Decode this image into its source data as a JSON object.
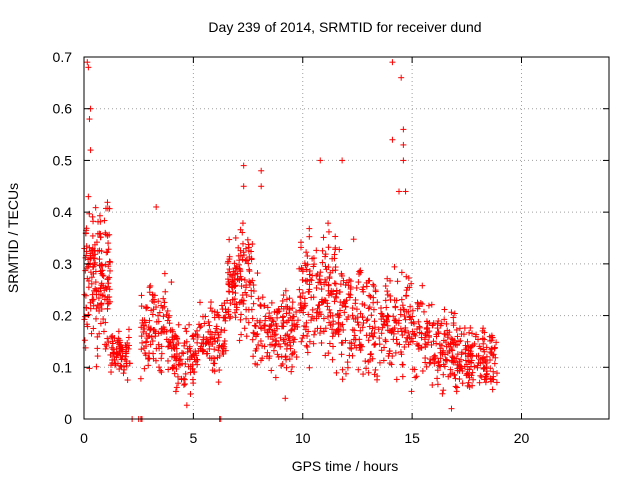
{
  "chart_data": {
    "type": "scatter",
    "title": "Day 239 of 2014, SRMTID for receiver dund",
    "xlabel": "GPS time / hours",
    "ylabel": "SRMTID / TECUs",
    "xlim": [
      0,
      24
    ],
    "ylim": [
      0,
      0.7
    ],
    "xticks": [
      0,
      5,
      10,
      15,
      20
    ],
    "xtick_labels": [
      "0",
      "5",
      "10",
      "15",
      "20"
    ],
    "yticks": [
      0,
      0.1,
      0.2,
      0.3,
      0.4,
      0.5,
      0.6,
      0.7
    ],
    "ytick_labels": [
      "0",
      "0.1",
      "0.2",
      "0.3",
      "0.4",
      "0.5",
      "0.6",
      "0.7"
    ],
    "grid": true,
    "marker": "+",
    "color": "#ff0000",
    "series": [
      {
        "name": "SRMTID",
        "clusters": [
          {
            "x_from": 0.0,
            "x_to": 1.2,
            "y_center": 0.27,
            "y_spread": 0.1,
            "count": 170
          },
          {
            "x_from": 1.2,
            "x_to": 2.1,
            "y_center": 0.13,
            "y_spread": 0.03,
            "count": 70
          },
          {
            "x_from": 2.6,
            "x_to": 4.0,
            "y_center": 0.17,
            "y_spread": 0.06,
            "count": 110
          },
          {
            "x_from": 4.0,
            "x_to": 5.3,
            "y_center": 0.12,
            "y_spread": 0.045,
            "count": 100
          },
          {
            "x_from": 5.3,
            "x_to": 6.5,
            "y_center": 0.16,
            "y_spread": 0.05,
            "count": 90
          },
          {
            "x_from": 6.5,
            "x_to": 7.7,
            "y_center": 0.26,
            "y_spread": 0.07,
            "count": 120
          },
          {
            "x_from": 7.7,
            "x_to": 9.8,
            "y_center": 0.17,
            "y_spread": 0.055,
            "count": 160
          },
          {
            "x_from": 9.8,
            "x_to": 11.5,
            "y_center": 0.24,
            "y_spread": 0.08,
            "count": 160
          },
          {
            "x_from": 11.5,
            "x_to": 13.0,
            "y_center": 0.2,
            "y_spread": 0.08,
            "count": 120
          },
          {
            "x_from": 13.0,
            "x_to": 15.5,
            "y_center": 0.18,
            "y_spread": 0.07,
            "count": 190
          },
          {
            "x_from": 15.5,
            "x_to": 17.0,
            "y_center": 0.14,
            "y_spread": 0.05,
            "count": 120
          },
          {
            "x_from": 17.0,
            "x_to": 18.9,
            "y_center": 0.12,
            "y_spread": 0.04,
            "count": 150
          }
        ],
        "outliers": [
          {
            "x": 0.15,
            "y": 0.69
          },
          {
            "x": 0.2,
            "y": 0.68
          },
          {
            "x": 0.3,
            "y": 0.6
          },
          {
            "x": 0.25,
            "y": 0.58
          },
          {
            "x": 0.3,
            "y": 0.52
          },
          {
            "x": 0.2,
            "y": 0.43
          },
          {
            "x": 3.3,
            "y": 0.41
          },
          {
            "x": 7.3,
            "y": 0.49
          },
          {
            "x": 7.3,
            "y": 0.45
          },
          {
            "x": 8.1,
            "y": 0.48
          },
          {
            "x": 8.1,
            "y": 0.45
          },
          {
            "x": 10.8,
            "y": 0.5
          },
          {
            "x": 11.8,
            "y": 0.5
          },
          {
            "x": 14.1,
            "y": 0.69
          },
          {
            "x": 14.5,
            "y": 0.66
          },
          {
            "x": 14.6,
            "y": 0.56
          },
          {
            "x": 14.6,
            "y": 0.53
          },
          {
            "x": 14.6,
            "y": 0.5
          },
          {
            "x": 14.1,
            "y": 0.54
          },
          {
            "x": 14.4,
            "y": 0.44
          },
          {
            "x": 14.7,
            "y": 0.44
          },
          {
            "x": 16.8,
            "y": 0.02
          },
          {
            "x": 9.2,
            "y": 0.04
          }
        ],
        "zero_points": [
          {
            "x": 2.2,
            "y": 0
          },
          {
            "x": 2.5,
            "y": 0
          },
          {
            "x": 2.6,
            "y": 0
          },
          {
            "x": 2.65,
            "y": 0
          },
          {
            "x": 6.2,
            "y": 0
          },
          {
            "x": 6.25,
            "y": 0
          }
        ]
      }
    ]
  }
}
